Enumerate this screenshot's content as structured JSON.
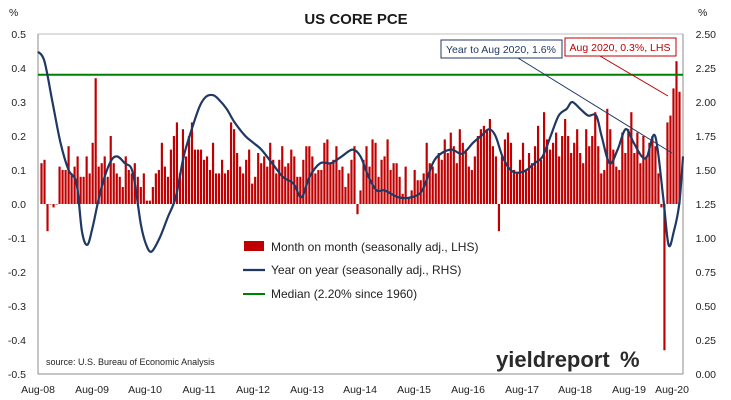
{
  "chart_data": {
    "type": "bar",
    "title": "US CORE PCE",
    "left_axis": {
      "unit_label": "%",
      "range": [
        -0.5,
        0.5
      ],
      "ticks": [
        "0.5",
        "0.4",
        "0.3",
        "0.2",
        "0.1",
        "0.0",
        "-0.1",
        "-0.2",
        "-0.3",
        "-0.4",
        "-0.5"
      ]
    },
    "right_axis": {
      "unit_label": "%",
      "range": [
        0.0,
        2.5
      ],
      "ticks": [
        "2.50",
        "2.25",
        "2.00",
        "1.75",
        "1.50",
        "1.25",
        "1.00",
        "0.75",
        "0.50",
        "0.25",
        "0.00"
      ]
    },
    "x_tick_labels": [
      "Aug-08",
      "Aug-09",
      "Aug-10",
      "Aug-11",
      "Aug-12",
      "Aug-13",
      "Aug-14",
      "Aug-15",
      "Aug-16",
      "Aug-17",
      "Aug-18",
      "Aug-19",
      "Aug-20"
    ],
    "x_start": "Aug-08",
    "x_end": "Aug-20",
    "series": [
      {
        "name": "Month on month (seasonally adj., LHS)",
        "kind": "bar",
        "axis": "left",
        "color": "#c00000",
        "values": [
          0.12,
          0.13,
          -0.08,
          0.0,
          -0.01,
          0.0,
          0.11,
          0.1,
          0.1,
          0.17,
          0.09,
          0.11,
          0.14,
          0.08,
          0.08,
          0.14,
          0.09,
          0.18,
          0.37,
          0.11,
          0.12,
          0.14,
          0.08,
          0.2,
          0.12,
          0.09,
          0.08,
          0.05,
          0.14,
          0.1,
          0.09,
          0.12,
          0.08,
          0.05,
          0.09,
          0.01,
          0.01,
          0.05,
          0.09,
          0.1,
          0.18,
          0.11,
          0.08,
          0.16,
          0.2,
          0.24,
          0.09,
          0.22,
          0.14,
          0.2,
          0.24,
          0.16,
          0.16,
          0.16,
          0.13,
          0.14,
          0.1,
          0.18,
          0.09,
          0.09,
          0.13,
          0.09,
          0.1,
          0.24,
          0.22,
          0.15,
          0.11,
          0.09,
          0.13,
          0.16,
          0.06,
          0.08,
          0.15,
          0.12,
          0.14,
          0.11,
          0.18,
          0.13,
          0.09,
          0.13,
          0.17,
          0.11,
          0.12,
          0.16,
          0.14,
          0.08,
          0.08,
          0.13,
          0.17,
          0.17,
          0.14,
          0.09,
          0.1,
          0.1,
          0.18,
          0.19,
          0.12,
          0.13,
          0.17,
          0.1,
          0.11,
          0.05,
          0.09,
          0.13,
          0.17,
          -0.03,
          0.04,
          0.13,
          0.17,
          0.11,
          0.19,
          0.18,
          0.08,
          0.13,
          0.14,
          0.19,
          0.1,
          0.12,
          0.12,
          0.08,
          0.03,
          0.11,
          0.02,
          0.04,
          0.1,
          0.07,
          0.07,
          0.09,
          0.18,
          0.12,
          0.11,
          0.09,
          0.15,
          0.13,
          0.19,
          0.15,
          0.21,
          0.17,
          0.12,
          0.22,
          0.18,
          0.16,
          0.11,
          0.1,
          0.14,
          0.2,
          0.22,
          0.23,
          0.22,
          0.25,
          0.17,
          0.14,
          -0.08,
          0.14,
          0.19,
          0.21,
          0.18,
          0.1,
          0.09,
          0.13,
          0.18,
          0.1,
          0.15,
          0.12,
          0.17,
          0.23,
          0.13,
          0.27,
          0.19,
          0.16,
          0.18,
          0.21,
          0.14,
          0.2,
          0.25,
          0.2,
          0.15,
          0.18,
          0.22,
          0.15,
          0.12,
          0.22,
          0.17,
          0.2,
          0.27,
          0.17,
          0.09,
          0.1,
          0.28,
          0.22,
          0.16,
          0.11,
          0.1,
          0.21,
          0.15,
          0.22,
          0.27,
          0.15,
          0.21,
          0.12,
          0.2,
          0.14,
          0.18,
          0.2,
          0.17,
          0.09,
          -0.01,
          -0.43,
          0.24,
          0.26,
          0.34,
          0.42,
          0.33
        ]
      },
      {
        "name": "Year on year (seasonally adj., RHS)",
        "kind": "line",
        "axis": "right",
        "color": "#1f3864",
        "points": [
          [
            2008.58,
            2.37
          ],
          [
            2008.7,
            2.3
          ],
          [
            2008.85,
            2.0
          ],
          [
            2009.0,
            1.7
          ],
          [
            2009.15,
            1.5
          ],
          [
            2009.3,
            1.4
          ],
          [
            2009.4,
            1.05
          ],
          [
            2009.5,
            0.95
          ],
          [
            2009.6,
            1.08
          ],
          [
            2009.75,
            1.35
          ],
          [
            2009.92,
            1.55
          ],
          [
            2010.05,
            1.6
          ],
          [
            2010.2,
            1.55
          ],
          [
            2010.35,
            1.48
          ],
          [
            2010.5,
            1.1
          ],
          [
            2010.6,
            0.95
          ],
          [
            2010.7,
            0.9
          ],
          [
            2010.85,
            1.0
          ],
          [
            2011.0,
            1.15
          ],
          [
            2011.15,
            1.3
          ],
          [
            2011.3,
            1.6
          ],
          [
            2011.45,
            1.8
          ],
          [
            2011.6,
            1.97
          ],
          [
            2011.72,
            2.04
          ],
          [
            2011.85,
            2.05
          ],
          [
            2011.95,
            2.02
          ],
          [
            2012.1,
            1.95
          ],
          [
            2012.25,
            1.85
          ],
          [
            2012.45,
            1.75
          ],
          [
            2012.6,
            1.7
          ],
          [
            2012.75,
            1.65
          ],
          [
            2012.95,
            1.55
          ],
          [
            2013.15,
            1.45
          ],
          [
            2013.35,
            1.4
          ],
          [
            2013.5,
            1.3
          ],
          [
            2013.65,
            1.45
          ],
          [
            2013.85,
            1.55
          ],
          [
            2014.05,
            1.55
          ],
          [
            2014.25,
            1.6
          ],
          [
            2014.45,
            1.65
          ],
          [
            2014.6,
            1.6
          ],
          [
            2014.75,
            1.45
          ],
          [
            2014.9,
            1.35
          ],
          [
            2015.05,
            1.35
          ],
          [
            2015.3,
            1.3
          ],
          [
            2015.55,
            1.3
          ],
          [
            2015.75,
            1.35
          ],
          [
            2015.95,
            1.55
          ],
          [
            2016.1,
            1.62
          ],
          [
            2016.3,
            1.65
          ],
          [
            2016.5,
            1.62
          ],
          [
            2016.7,
            1.7
          ],
          [
            2016.85,
            1.75
          ],
          [
            2017.0,
            1.8
          ],
          [
            2017.12,
            1.75
          ],
          [
            2017.25,
            1.6
          ],
          [
            2017.4,
            1.5
          ],
          [
            2017.55,
            1.48
          ],
          [
            2017.7,
            1.5
          ],
          [
            2017.85,
            1.55
          ],
          [
            2018.0,
            1.6
          ],
          [
            2018.15,
            1.75
          ],
          [
            2018.3,
            1.9
          ],
          [
            2018.45,
            1.95
          ],
          [
            2018.55,
            2.0
          ],
          [
            2018.7,
            1.95
          ],
          [
            2018.85,
            1.9
          ],
          [
            2019.0,
            1.9
          ],
          [
            2019.1,
            1.75
          ],
          [
            2019.25,
            1.55
          ],
          [
            2019.4,
            1.65
          ],
          [
            2019.55,
            1.8
          ],
          [
            2019.7,
            1.7
          ],
          [
            2019.85,
            1.6
          ],
          [
            2019.95,
            1.6
          ],
          [
            2020.1,
            1.75
          ],
          [
            2020.25,
            1.3
          ],
          [
            2020.35,
            0.95
          ],
          [
            2020.45,
            1.05
          ],
          [
            2020.55,
            1.25
          ],
          [
            2020.62,
            1.6
          ]
        ]
      },
      {
        "name": "Median (2.20% since 1960)",
        "kind": "hline",
        "axis": "right",
        "color": "#008000",
        "value": 2.2
      }
    ],
    "annotations": [
      {
        "text": "Year to Aug 2020, 1.6%",
        "color": "#1f3864"
      },
      {
        "text": "Aug 2020, 0.3%, LHS",
        "color": "#c00000"
      }
    ],
    "legend_position": "bottom-center",
    "grid": false
  },
  "source": "source: U.S. Bureau of Economic Analysis",
  "brand": {
    "text": "yieldreport",
    "mark": "%"
  }
}
